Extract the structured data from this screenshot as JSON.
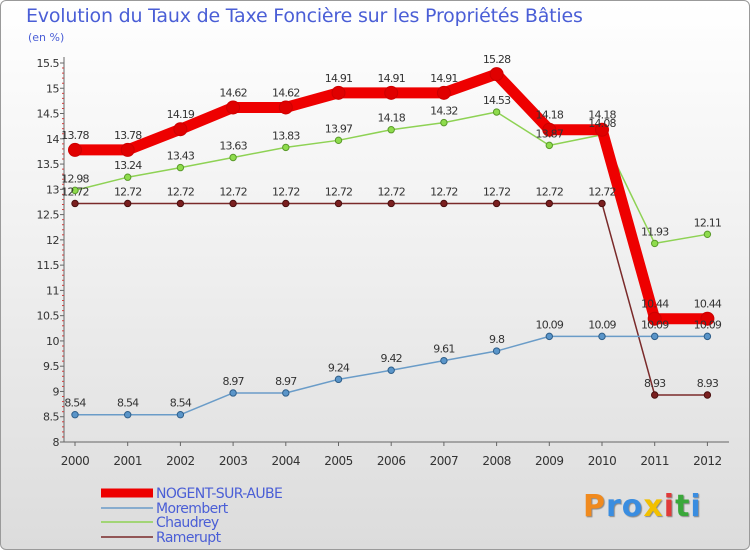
{
  "title": "Evolution du Taux de Taxe Foncière sur les Propriétés Bâties",
  "unit": "(en %)",
  "logo": {
    "text": "Proxiti",
    "colors": [
      "#f08a1e",
      "#3a8de0",
      "#3a8de0",
      "#f2c000",
      "#e03a3a",
      "#3aa83a",
      "#3a8de0"
    ]
  },
  "chart_data": {
    "type": "line",
    "title": "Evolution du Taux de Taxe Foncière sur les Propriétés Bâties",
    "ylabel": "(en %)",
    "xlabel": "",
    "categories": [
      "2000",
      "2001",
      "2002",
      "2003",
      "2004",
      "2005",
      "2006",
      "2007",
      "2008",
      "2009",
      "2010",
      "2011",
      "2012"
    ],
    "ylim": [
      8,
      15.5
    ],
    "yticks": [
      "8",
      "8.5",
      "9",
      "9.5",
      "10",
      "10.5",
      "11",
      "11.5",
      "12",
      "12.5",
      "13",
      "13.5",
      "14",
      "14.5",
      "15",
      "15.5"
    ],
    "legend_position": "bottom-left",
    "series": [
      {
        "name": "NOGENT-SUR-AUBE",
        "color": "#ee0000",
        "values": [
          13.78,
          13.78,
          14.19,
          14.62,
          14.62,
          14.91,
          14.91,
          14.91,
          15.28,
          14.18,
          14.18,
          10.44,
          10.44
        ],
        "labels": [
          "13.78",
          "13.78",
          "14.19",
          "14.62",
          "14.62",
          "14.91",
          "14.91",
          "14.91",
          "15.28",
          "14.18",
          "14.18",
          "10.44",
          "10.44"
        ]
      },
      {
        "name": "Morembert",
        "color": "#6a9cc8",
        "values": [
          8.54,
          8.54,
          8.54,
          8.97,
          8.97,
          9.24,
          9.42,
          9.61,
          9.8,
          10.09,
          10.09,
          10.09,
          10.09
        ],
        "labels": [
          "8.54",
          "8.54",
          "8.54",
          "8.97",
          "8.97",
          "9.24",
          "9.42",
          "9.61",
          "9.8",
          "10.09",
          "10.09",
          "10.09",
          "10.09"
        ]
      },
      {
        "name": "Chaudrey",
        "color": "#8ed254",
        "values": [
          12.98,
          13.24,
          13.43,
          13.63,
          13.83,
          13.97,
          14.18,
          14.32,
          14.53,
          13.87,
          14.08,
          11.93,
          12.11
        ],
        "labels": [
          "12.98",
          "13.24",
          "13.43",
          "13.63",
          "13.83",
          "13.97",
          "14.18",
          "14.32",
          "14.53",
          "13.87",
          "14.08",
          "11.93",
          "12.11"
        ]
      },
      {
        "name": "Ramerupt",
        "color": "#7a2a2a",
        "values": [
          12.72,
          12.72,
          12.72,
          12.72,
          12.72,
          12.72,
          12.72,
          12.72,
          12.72,
          12.72,
          12.72,
          8.93,
          8.93
        ],
        "labels": [
          "12.72",
          "12.72",
          "12.72",
          "12.72",
          "12.72",
          "12.72",
          "12.72",
          "12.72",
          "12.72",
          "12.72",
          "12.72",
          "8.93",
          "8.93"
        ]
      }
    ]
  }
}
